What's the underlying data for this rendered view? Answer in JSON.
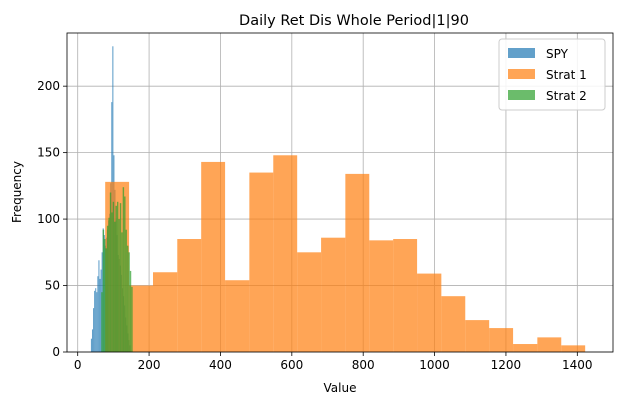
{
  "chart_data": {
    "type": "bar",
    "title": "Daily Ret Dis Whole Period|1|90",
    "xlabel": "Value",
    "ylabel": "Frequency",
    "xlim": [
      -30,
      1500
    ],
    "ylim": [
      0,
      240
    ],
    "xticks": [
      0,
      200,
      400,
      600,
      800,
      1000,
      1200,
      1400
    ],
    "yticks": [
      0,
      50,
      100,
      150,
      200
    ],
    "grid": true,
    "legend_position": "top-right",
    "series": [
      {
        "name": "SPY",
        "color": "#1f77b4",
        "opacity": 0.7,
        "bins": [
          [
            37,
            40,
            10
          ],
          [
            40,
            43,
            17
          ],
          [
            43,
            46,
            33
          ],
          [
            46,
            49,
            46
          ],
          [
            49,
            52,
            48
          ],
          [
            52,
            55,
            45
          ],
          [
            55,
            58,
            57
          ],
          [
            58,
            61,
            69
          ],
          [
            61,
            64,
            55
          ],
          [
            64,
            67,
            62
          ],
          [
            67,
            70,
            75
          ],
          [
            70,
            73,
            93
          ],
          [
            73,
            76,
            88
          ],
          [
            76,
            79,
            80
          ],
          [
            79,
            82,
            86
          ],
          [
            82,
            85,
            92
          ],
          [
            85,
            88,
            99
          ],
          [
            88,
            91,
            104
          ],
          [
            91,
            94,
            127
          ],
          [
            94,
            97,
            188
          ],
          [
            97,
            100,
            230
          ],
          [
            100,
            103,
            148
          ],
          [
            103,
            106,
            122
          ],
          [
            106,
            109,
            99
          ],
          [
            109,
            112,
            88
          ],
          [
            112,
            115,
            73
          ],
          [
            115,
            118,
            70
          ],
          [
            118,
            121,
            65
          ],
          [
            121,
            124,
            58
          ],
          [
            124,
            127,
            48
          ],
          [
            127,
            130,
            42
          ],
          [
            130,
            133,
            35
          ],
          [
            133,
            136,
            26
          ],
          [
            136,
            139,
            20
          ],
          [
            139,
            142,
            14
          ],
          [
            142,
            145,
            9
          ],
          [
            145,
            148,
            5
          ]
        ]
      },
      {
        "name": "Strat 1",
        "color": "#ff7f0e",
        "opacity": 0.7,
        "bins": [
          [
            77,
            144,
            128
          ],
          [
            144,
            211,
            50
          ],
          [
            211,
            279,
            60
          ],
          [
            279,
            346,
            85
          ],
          [
            346,
            413,
            143
          ],
          [
            413,
            481,
            54
          ],
          [
            481,
            548,
            135
          ],
          [
            548,
            615,
            148
          ],
          [
            615,
            682,
            75
          ],
          [
            682,
            750,
            86
          ],
          [
            750,
            817,
            134
          ],
          [
            817,
            884,
            84
          ],
          [
            884,
            951,
            85
          ],
          [
            951,
            1019,
            59
          ],
          [
            1019,
            1086,
            42
          ],
          [
            1086,
            1153,
            24
          ],
          [
            1153,
            1220,
            18
          ],
          [
            1220,
            1288,
            6
          ],
          [
            1288,
            1355,
            11
          ],
          [
            1355,
            1422,
            5
          ]
        ]
      },
      {
        "name": "Strat 2",
        "color": "#2ca02c",
        "opacity": 0.7,
        "bins": [
          [
            66,
            70,
            45
          ],
          [
            70,
            74,
            92
          ],
          [
            74,
            78,
            85
          ],
          [
            78,
            82,
            78
          ],
          [
            82,
            86,
            95
          ],
          [
            86,
            90,
            101
          ],
          [
            90,
            94,
            120
          ],
          [
            94,
            98,
            105
          ],
          [
            98,
            102,
            113
          ],
          [
            102,
            106,
            98
          ],
          [
            106,
            110,
            110
          ],
          [
            110,
            114,
            113
          ],
          [
            114,
            118,
            100
          ],
          [
            118,
            122,
            112
          ],
          [
            122,
            126,
            90
          ],
          [
            126,
            130,
            124
          ],
          [
            130,
            134,
            117
          ],
          [
            134,
            138,
            92
          ],
          [
            138,
            142,
            80
          ],
          [
            142,
            146,
            75
          ],
          [
            146,
            150,
            61
          ],
          [
            150,
            154,
            49
          ]
        ]
      }
    ]
  }
}
